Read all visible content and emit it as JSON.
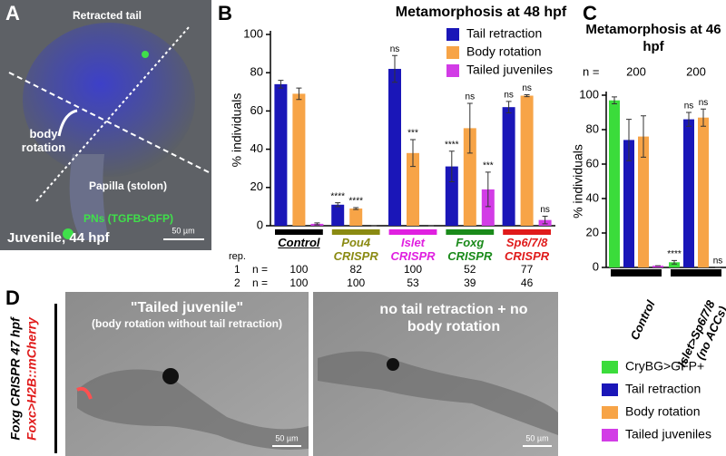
{
  "panel_labels": [
    "A",
    "B",
    "C",
    "D"
  ],
  "panel_a": {
    "retracted_tail": "Retracted tail",
    "body_rotation": "body rotation",
    "papilla": "Papilla (stolon)",
    "pns": "PNs (TGFB>GFP)",
    "caption": "Juvenile, 44 hpf",
    "scale": "50 µm"
  },
  "panel_d": {
    "side_1": "Foxg CRISPR 47 hpf",
    "side_2": "Foxc>H2B::mCherry",
    "image_1_title": "\"Tailed juvenile\"",
    "image_1_subtitle": "(body rotation without tail retraction)",
    "image_1_scale": "50 µm",
    "image_2_title": "no tail retraction + no body rotation",
    "image_2_scale": "50 µm"
  },
  "chart_data": [
    {
      "type": "bar",
      "title": "Metamorphosis at 48 hpf",
      "y_label": "% individuals",
      "categories": [
        "Control",
        "Pou4 CRISPR",
        "Islet CRISPR",
        "Foxg CRISPR",
        "Sp6/7/8 CRISPR"
      ],
      "category_colors": [
        "#000000",
        "#8a8a12",
        "#e020e0",
        "#1a8a1a",
        "#e01a1a"
      ],
      "series": [
        {
          "name": "Tail retraction",
          "color": "#1a16b8",
          "values": [
            74,
            11,
            82,
            31,
            62
          ],
          "errors": [
            2,
            1,
            7,
            8,
            3
          ],
          "labels": [
            null,
            "****",
            "ns",
            "****",
            "ns"
          ]
        },
        {
          "name": "Body rotation",
          "color": "#f7a447",
          "values": [
            69,
            9,
            38,
            51,
            68
          ],
          "errors": [
            3,
            0.5,
            7,
            13,
            0.5
          ],
          "labels": [
            null,
            "****",
            "***",
            "ns",
            "ns"
          ]
        },
        {
          "name": "Tailed juveniles",
          "color": "#d23ce6",
          "values": [
            1,
            0,
            0,
            19,
            3
          ],
          "errors": [
            0.5,
            0,
            0,
            9,
            2
          ],
          "labels": [
            null,
            null,
            null,
            "***",
            "ns"
          ]
        }
      ],
      "ylim": [
        0,
        100
      ],
      "yticks": [
        0,
        20,
        40,
        60,
        80,
        100
      ],
      "replicates": {
        "label": "rep.",
        "rows": [
          {
            "rep": "1",
            "n_label": "n =",
            "n": [
              100,
              82,
              100,
              52,
              77
            ]
          },
          {
            "rep": "2",
            "n_label": "n =",
            "n": [
              100,
              100,
              53,
              39,
              46
            ]
          }
        ]
      }
    },
    {
      "type": "bar",
      "title": "Metamorphosis at 46 hpf",
      "y_label": "% individuals",
      "categories": [
        "Control",
        "Islet>Sp6/7/8 (no ACCs)"
      ],
      "category_colors": [
        "#000000",
        "#000000"
      ],
      "n_label": "n =",
      "n": [
        200,
        200
      ],
      "series": [
        {
          "name": "CryBG>GFP+",
          "color": "#3bdc3b",
          "values": [
            97,
            3
          ],
          "errors": [
            2,
            1
          ],
          "labels": [
            null,
            "****"
          ]
        },
        {
          "name": "Tail retraction",
          "color": "#1a16b8",
          "values": [
            74,
            86
          ],
          "errors": [
            12,
            4
          ],
          "labels": [
            null,
            "ns"
          ]
        },
        {
          "name": "Body rotation",
          "color": "#f7a447",
          "values": [
            76,
            87
          ],
          "errors": [
            12,
            5
          ],
          "labels": [
            null,
            "ns"
          ]
        },
        {
          "name": "Tailed juveniles",
          "color": "#d23ce6",
          "values": [
            1,
            0
          ],
          "errors": [
            0,
            0
          ],
          "labels": [
            null,
            "ns"
          ]
        }
      ],
      "ylim": [
        0,
        100
      ],
      "yticks": [
        0,
        20,
        40,
        60,
        80,
        100
      ]
    }
  ]
}
